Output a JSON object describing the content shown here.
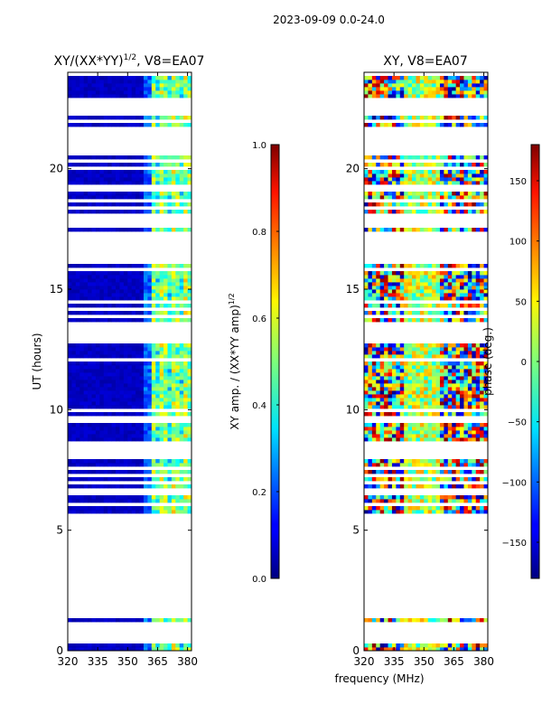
{
  "figure": {
    "suptitle": "2023-09-09 0.0-24.0"
  },
  "chart_data": [
    {
      "type": "heatmap",
      "panel": "amplitude",
      "title": "XY/(XX*YY)",
      "title_exponent": "1/2",
      "title_suffix": ", V8=EA07",
      "xlabel": "",
      "ylabel": "UT (hours)",
      "xlim": [
        320,
        382
      ],
      "ylim": [
        0,
        24
      ],
      "x_ticks": [
        320,
        335,
        350,
        365,
        380
      ],
      "y_ticks": [
        0,
        5,
        10,
        15,
        20
      ],
      "data_present_ut": [
        [
          0.0,
          1.3
        ],
        [
          5.7,
          23.9
        ]
      ],
      "flagged_rows_ut": [
        0.35,
        0.6,
        0.9,
        1.05,
        6.1,
        6.6,
        7.0,
        7.3,
        7.6,
        8.1,
        8.4,
        8.65,
        9.6,
        10.0,
        12.05,
        12.9,
        13.2,
        13.5,
        13.9,
        14.2,
        14.5,
        15.8,
        16.2,
        16.5,
        16.8,
        17.1,
        17.3,
        17.7,
        18.0,
        18.4,
        18.7,
        19.2,
        20.0,
        20.3,
        20.7,
        21.0,
        21.3,
        21.6,
        22.0,
        22.3,
        22.5,
        22.8
      ],
      "note": "Channels 320-359 MHz low amplitude (~0.05); bright vertical stripes near 362-382 MHz (0.2-0.7)"
    },
    {
      "type": "colorbar",
      "panel": "amplitude",
      "label": "XY amp. / (XX*YY amp)",
      "label_exponent": "1/2",
      "range": [
        0,
        1
      ],
      "ticks": [
        "0.0",
        "0.2",
        "0.4",
        "0.6",
        "0.8",
        "1.0"
      ],
      "tick_values": [
        0.0,
        0.2,
        0.4,
        0.6,
        0.8,
        1.0
      ],
      "colormap": "jet"
    },
    {
      "type": "heatmap",
      "panel": "phase",
      "title": "XY, V8=EA07",
      "xlabel": "frequency (MHz)",
      "ylabel": "",
      "xlim": [
        320,
        382
      ],
      "ylim": [
        0,
        24
      ],
      "x_ticks": [
        320,
        335,
        350,
        365,
        380
      ],
      "y_ticks": [
        0,
        5,
        10,
        15,
        20
      ],
      "data_present_ut": [
        [
          0.0,
          1.3
        ],
        [
          5.7,
          23.9
        ]
      ],
      "note": "Phase values noisy from -180 to 180 deg across band"
    },
    {
      "type": "colorbar",
      "panel": "phase",
      "label": "phase (deg.)",
      "range": [
        -180,
        180
      ],
      "ticks": [
        "−150",
        "−100",
        "−50",
        "0",
        "50",
        "100",
        "150"
      ],
      "tick_values": [
        -150,
        -100,
        -50,
        0,
        50,
        100,
        150
      ],
      "colormap": "jet"
    }
  ]
}
